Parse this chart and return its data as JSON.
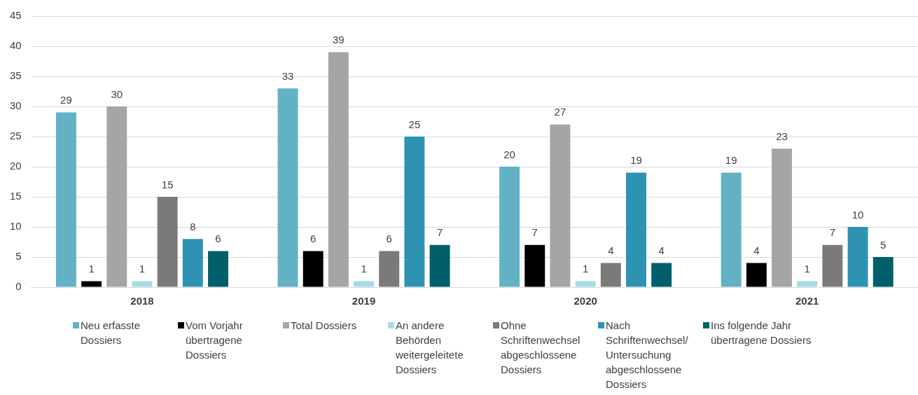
{
  "chart_data": {
    "type": "bar",
    "categories": [
      "2018",
      "2019",
      "2020",
      "2021"
    ],
    "series": [
      {
        "name": "Neu erfasste Dossiers",
        "color": "#62b1c5",
        "values": [
          29,
          33,
          20,
          19
        ]
      },
      {
        "name": "Vom Vorjahr übertragene Dossiers",
        "color": "#000000",
        "values": [
          1,
          6,
          7,
          4
        ]
      },
      {
        "name": "Total Dossiers",
        "color": "#a5a5a5",
        "values": [
          30,
          39,
          27,
          23
        ]
      },
      {
        "name": "An andere Behörden weitergeleitete Dossiers",
        "color": "#a8dce5",
        "values": [
          1,
          1,
          1,
          1
        ]
      },
      {
        "name": "Ohne Schriftenwechsel abgeschlossene Dossiers",
        "color": "#7a7a7a",
        "values": [
          15,
          6,
          4,
          7
        ]
      },
      {
        "name": "Nach Schriftenwechsel/Untersuchung abgeschlossene Dossiers",
        "color": "#2e93b3",
        "values": [
          8,
          25,
          19,
          10
        ]
      },
      {
        "name": "Ins folgende Jahr übertragene Dossiers",
        "color": "#005f6b",
        "values": [
          6,
          7,
          4,
          5
        ]
      }
    ],
    "ylim": [
      0,
      45
    ],
    "yticks": [
      0,
      5,
      10,
      15,
      20,
      25,
      30,
      35,
      40,
      45
    ],
    "grid": "y",
    "legend": "bottom",
    "data_labels": true
  }
}
